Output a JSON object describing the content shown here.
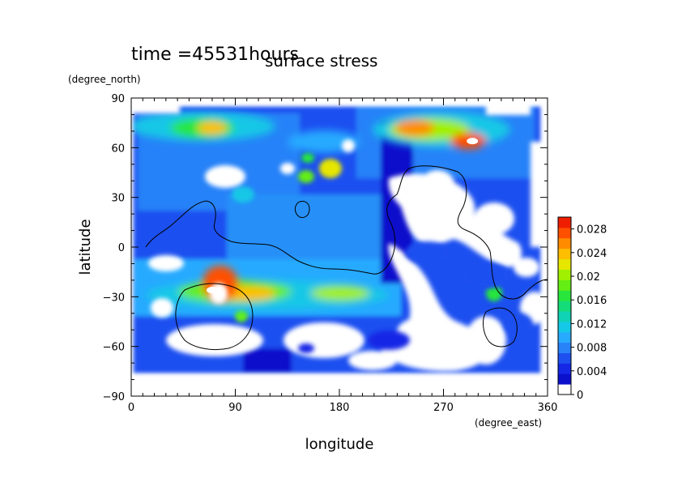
{
  "chart_data": {
    "type": "heatmap",
    "time_label": "time =45531hours",
    "title": "surface stress",
    "xlabel": "longitude",
    "ylabel": "latitude",
    "x_unit": "(degree_east)",
    "y_unit": "(degree_north)",
    "xlim": [
      0,
      360
    ],
    "ylim": [
      -90,
      90
    ],
    "x_ticks": [
      0,
      90,
      180,
      270,
      360
    ],
    "y_ticks": [
      -90,
      -60,
      -30,
      0,
      30,
      60,
      90
    ],
    "x_tick_labels": [
      "0",
      "90",
      "180",
      "270",
      "360"
    ],
    "y_tick_labels": [
      "−90",
      "−60",
      "−30",
      "0",
      "30",
      "60",
      "90"
    ],
    "colorbar": {
      "min": 0,
      "max": 0.03,
      "labels": [
        "0",
        "0.004",
        "0.008",
        "0.012",
        "0.016",
        "0.02",
        "0.024",
        "0.028"
      ],
      "label_values": [
        0,
        0.004,
        0.008,
        0.012,
        0.016,
        0.02,
        0.024,
        0.028
      ],
      "colors": [
        "#ffffff",
        "#0a10cc",
        "#1428e6",
        "#1e50f0",
        "#2882f8",
        "#28aaff",
        "#14c8e6",
        "#10d2b4",
        "#14dc78",
        "#28e63c",
        "#64ee14",
        "#a0f000",
        "#e6e600",
        "#ffbe00",
        "#ff8c00",
        "#ff5000",
        "#f01e00"
      ]
    },
    "hotspots": [
      {
        "lon": 70,
        "lat": 70,
        "value": 0.022
      },
      {
        "lon": 252,
        "lat": 70,
        "value": 0.024
      },
      {
        "lon": 295,
        "lat": 64,
        "value": 0.03
      },
      {
        "lon": 70,
        "lat": -26,
        "value": 0.03
      },
      {
        "lon": 120,
        "lat": -30,
        "value": 0.02
      },
      {
        "lon": 170,
        "lat": 48,
        "value": 0.018
      },
      {
        "lon": 310,
        "lat": -28,
        "value": 0.012
      }
    ]
  }
}
